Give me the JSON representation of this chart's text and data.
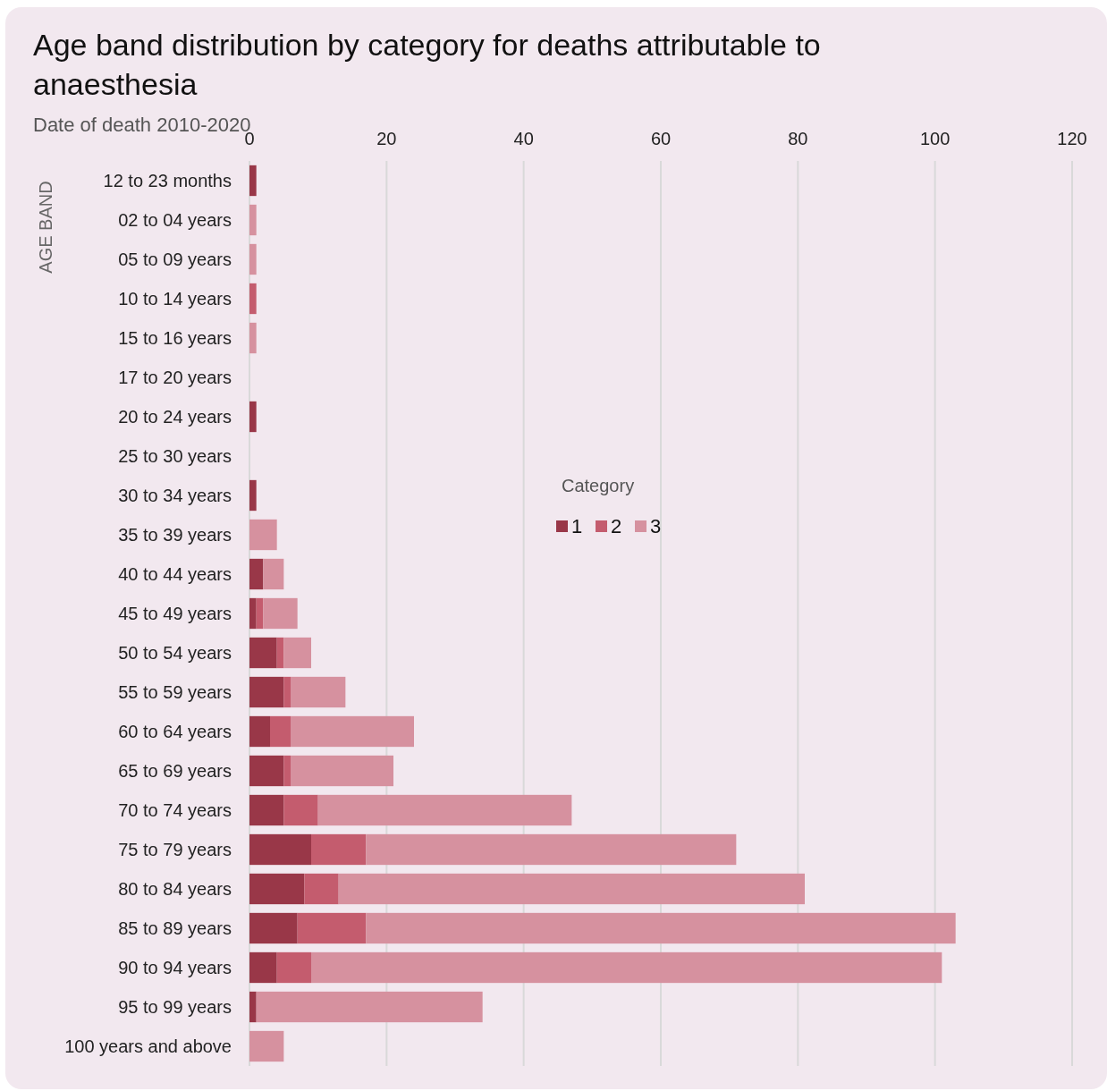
{
  "chart_data": {
    "type": "bar",
    "orientation": "horizontal",
    "stacked": true,
    "title": "Age band distribution by category for deaths attributable to anaesthesia",
    "subtitle": "Date of death 2010-2020",
    "ylabel": "AGE BAND",
    "legend_title": "Category",
    "categories": [
      "12 to 23 months",
      "02 to 04 years",
      "05 to 09 years",
      "10 to 14 years",
      "15 to 16 years",
      "17 to 20 years",
      "20 to 24 years",
      "25 to 30 years",
      "30 to 34 years",
      "35 to 39 years",
      "40 to 44 years",
      "45 to 49 years",
      "50 to 54 years",
      "55 to 59 years",
      "60 to 64 years",
      "65 to 69 years",
      "70 to 74 years",
      "75 to 79 years",
      "80 to 84 years",
      "85 to 89 years",
      "90 to 94 years",
      "95 to 99 years",
      "100 years and above"
    ],
    "series": [
      {
        "name": "1",
        "color": "#993748",
        "values": [
          1,
          null,
          null,
          null,
          null,
          null,
          1,
          null,
          1,
          null,
          2,
          1,
          4,
          5,
          3,
          5,
          5,
          9,
          8,
          7,
          4,
          1,
          null
        ]
      },
      {
        "name": "2",
        "color": "#c45c6e",
        "values": [
          null,
          null,
          null,
          1,
          null,
          null,
          null,
          null,
          null,
          null,
          null,
          1,
          1,
          1,
          3,
          1,
          5,
          8,
          5,
          10,
          5,
          null,
          null
        ]
      },
      {
        "name": "3",
        "color": "#d6919f",
        "values": [
          null,
          1,
          1,
          null,
          1,
          null,
          null,
          null,
          null,
          4,
          3,
          5,
          4,
          8,
          18,
          15,
          37,
          54,
          68,
          86,
          92,
          33,
          5
        ]
      }
    ],
    "xlim": [
      0,
      120
    ],
    "xticks": [
      0,
      20,
      40,
      60,
      80,
      100,
      120
    ],
    "grid": "x",
    "legend": "top left"
  }
}
